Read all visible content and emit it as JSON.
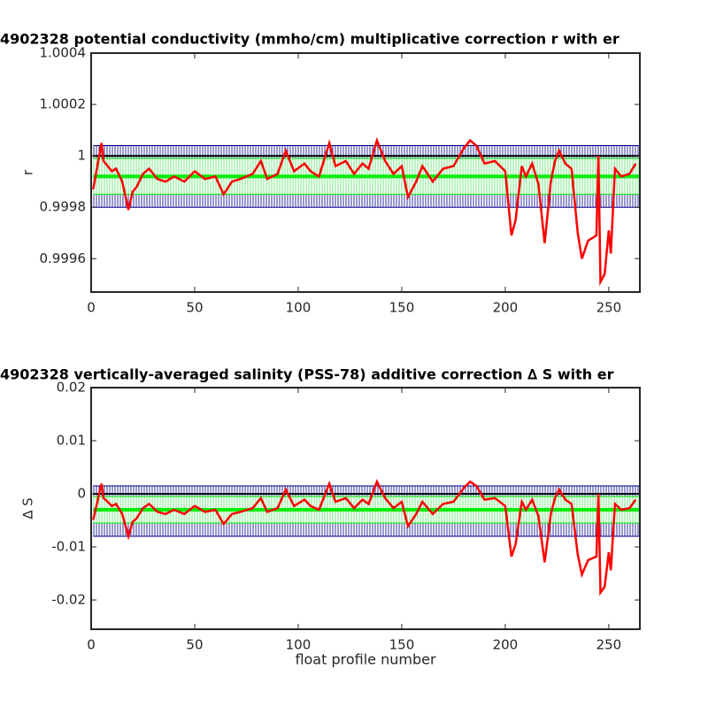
{
  "chart_data": [
    {
      "type": "line",
      "title": "4902328 potential conductivity (mmho/cm) multiplicative correction r with er",
      "y_label": "r",
      "xlim": [
        0,
        265
      ],
      "xticks": [
        0,
        50,
        100,
        150,
        200,
        250
      ],
      "ylim": [
        0.99947,
        1.0004
      ],
      "yticks": [
        0.9996,
        0.9998,
        1,
        1.0002,
        1.0004
      ],
      "reference_line": 1,
      "bands": [
        {
          "color": "#00008b",
          "center": 0.99992,
          "error": 0.00012
        },
        {
          "color": "#00ee00",
          "center": 0.99992,
          "error": 7e-05
        }
      ],
      "x": [
        1,
        5,
        6,
        8,
        10,
        12,
        15,
        18,
        20,
        22,
        25,
        28,
        32,
        36,
        40,
        45,
        50,
        55,
        60,
        64,
        68,
        72,
        78,
        82,
        85,
        90,
        94,
        98,
        103,
        106,
        110,
        115,
        118,
        123,
        127,
        131,
        134,
        138,
        142,
        146,
        150,
        153,
        157,
        160,
        165,
        170,
        175,
        180,
        183,
        186,
        190,
        195,
        200,
        203,
        205,
        208,
        210,
        213,
        216,
        219,
        222,
        224,
        226,
        229,
        232,
        235,
        237,
        240,
        244,
        245,
        246,
        248,
        250,
        251,
        253,
        256,
        260,
        263
      ],
      "series": [
        {
          "color": "#ff0000",
          "values": [
            0.99987,
            1.00005,
            0.99998,
            0.99996,
            0.99994,
            0.99995,
            0.9999,
            0.99979,
            0.99986,
            0.99988,
            0.99993,
            0.99995,
            0.99991,
            0.9999,
            0.99992,
            0.9999,
            0.99994,
            0.99991,
            0.99992,
            0.99985,
            0.9999,
            0.99991,
            0.99993,
            0.99998,
            0.99991,
            0.99993,
            1.00002,
            0.99994,
            0.99997,
            0.99994,
            0.99992,
            1.00005,
            0.99996,
            0.99998,
            0.99993,
            0.99997,
            0.99995,
            1.00006,
            0.99998,
            0.99993,
            0.99996,
            0.99984,
            0.9999,
            0.99996,
            0.9999,
            0.99995,
            0.99996,
            1.00003,
            1.00006,
            1.00004,
            0.99997,
            0.99998,
            0.99994,
            0.99969,
            0.99975,
            0.99996,
            0.99992,
            0.99997,
            0.99989,
            0.99966,
            0.9999,
            0.99998,
            1.00002,
            0.99997,
            0.99995,
            0.9997,
            0.9996,
            0.99967,
            0.99969,
            1,
            0.99951,
            0.99954,
            0.99971,
            0.99962,
            0.99995,
            0.99992,
            0.99993,
            0.99997
          ]
        }
      ]
    },
    {
      "type": "line",
      "title": "4902328 vertically-averaged salinity (PSS-78) additive correction ∆ S with er",
      "y_label": "∆ S",
      "x_label": "float profile number",
      "xlim": [
        0,
        265
      ],
      "xticks": [
        0,
        50,
        100,
        150,
        200,
        250
      ],
      "ylim": [
        -0.0255,
        0.02
      ],
      "yticks": [
        -0.02,
        -0.01,
        0,
        0.01,
        0.02
      ],
      "reference_line": 0,
      "bands": [
        {
          "color": "#00008b",
          "center": -0.00325,
          "error": 0.00475
        },
        {
          "color": "#00ee00",
          "center": -0.003,
          "error": 0.0025
        }
      ],
      "x": [
        1,
        5,
        6,
        8,
        10,
        12,
        15,
        18,
        20,
        22,
        25,
        28,
        32,
        36,
        40,
        45,
        50,
        55,
        60,
        64,
        68,
        72,
        78,
        82,
        85,
        90,
        94,
        98,
        103,
        106,
        110,
        115,
        118,
        123,
        127,
        131,
        134,
        138,
        142,
        146,
        150,
        153,
        157,
        160,
        165,
        170,
        175,
        180,
        183,
        186,
        190,
        195,
        200,
        203,
        205,
        208,
        210,
        213,
        216,
        219,
        222,
        224,
        226,
        229,
        232,
        235,
        237,
        240,
        244,
        245,
        246,
        248,
        250,
        251,
        253,
        256,
        260,
        263
      ],
      "series": [
        {
          "color": "#ff0000",
          "values": [
            -0.0049,
            0.0019,
            -0.0008,
            -0.0015,
            -0.0023,
            -0.0019,
            -0.0038,
            -0.008,
            -0.0053,
            -0.0046,
            -0.0027,
            -0.0019,
            -0.0034,
            -0.0038,
            -0.003,
            -0.0038,
            -0.0023,
            -0.0034,
            -0.003,
            -0.0057,
            -0.0038,
            -0.0034,
            -0.0027,
            -0.0008,
            -0.0034,
            -0.0027,
            0.0008,
            -0.0023,
            -0.0011,
            -0.0023,
            -0.003,
            0.0019,
            -0.0015,
            -0.0008,
            -0.0027,
            -0.0011,
            -0.0019,
            0.0023,
            -0.0008,
            -0.0027,
            -0.0015,
            -0.0061,
            -0.0038,
            -0.0015,
            -0.0038,
            -0.0019,
            -0.0015,
            0.0011,
            0.0023,
            0.0015,
            -0.0011,
            -0.0008,
            -0.0023,
            -0.0118,
            -0.0095,
            -0.0015,
            -0.003,
            -0.0011,
            -0.0042,
            -0.0129,
            -0.0038,
            -0.0008,
            0.0008,
            -0.0011,
            -0.0019,
            -0.0114,
            -0.0152,
            -0.0125,
            -0.0118,
            0,
            -0.0186,
            -0.0175,
            -0.011,
            -0.0144,
            -0.0019,
            -0.003,
            -0.0027,
            -0.0011
          ]
        }
      ]
    }
  ]
}
